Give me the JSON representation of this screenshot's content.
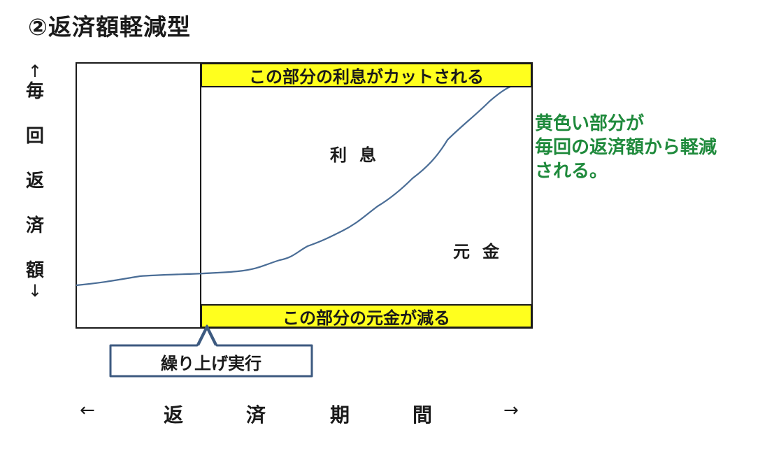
{
  "title": "②返済額軽減型",
  "y_axis": {
    "up_arrow": "↑",
    "chars": [
      "毎",
      "回",
      "返",
      "済",
      "額"
    ],
    "down_arrow": "↓"
  },
  "x_axis": {
    "left_arrow": "←",
    "chars": [
      "返",
      "済",
      "期",
      "間"
    ],
    "right_arrow": "→"
  },
  "bands": {
    "top": "この部分の利息がカットされる",
    "bottom": "この部分の元金が減る"
  },
  "labels": {
    "interest": "利息",
    "principal": "元金"
  },
  "callout": "繰り上げ実行",
  "note": [
    "黄色い部分が",
    "毎回の返済額から軽減",
    "される。"
  ],
  "colors": {
    "highlight": "#ffff1e",
    "curve": "#4a6d96",
    "note_text": "#1f8a3c",
    "callout_border": "#3d5a80"
  }
}
